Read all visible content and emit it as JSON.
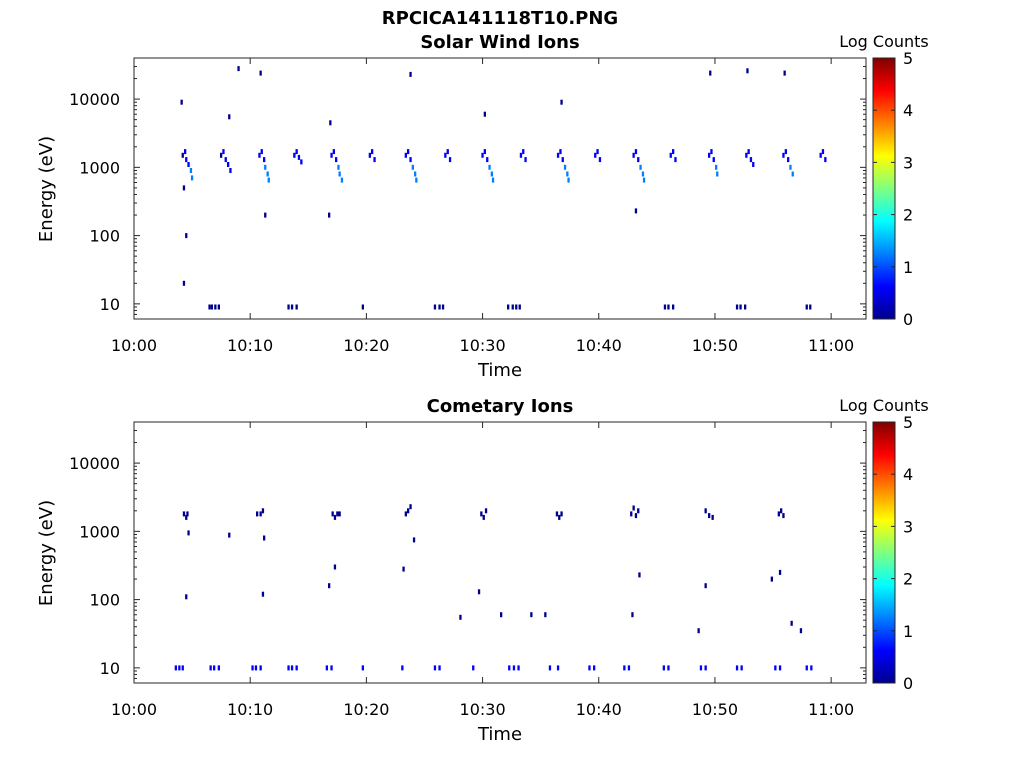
{
  "figure_title": "RPCICA141118T10.PNG",
  "colors": {
    "cmap": [
      "#00008f",
      "#0000ff",
      "#0080ff",
      "#00ffff",
      "#80ff80",
      "#ffff00",
      "#ff8000",
      "#ff0000",
      "#800000"
    ],
    "text": "#000000"
  },
  "chart_data": [
    {
      "type": "heatmap",
      "title": "Solar Wind Ions",
      "xlabel": "Time",
      "ylabel": "Energy (eV)",
      "x_ticks": [
        "10:00",
        "10:10",
        "10:20",
        "10:30",
        "10:40",
        "10:50",
        "11:00"
      ],
      "x_tick_minutes": [
        0,
        10,
        20,
        30,
        40,
        50,
        60
      ],
      "xlim_minutes": [
        0,
        63
      ],
      "y_ticks": [
        "10",
        "100",
        "1000",
        "10000"
      ],
      "y_tick_values": [
        10,
        100,
        1000,
        10000
      ],
      "ylim": [
        6,
        40000
      ],
      "yscale": "log",
      "colorbar": {
        "label": "Log Counts",
        "ticks": [
          "0",
          "1",
          "2",
          "3",
          "4",
          "5"
        ],
        "range": [
          0,
          5
        ]
      },
      "cells": [
        [
          4.2,
          1500,
          0.3
        ],
        [
          4.4,
          1700,
          0.5
        ],
        [
          4.5,
          1300,
          0.7
        ],
        [
          4.7,
          1100,
          0.9
        ],
        [
          4.9,
          900,
          1.1
        ],
        [
          5.0,
          700,
          1.2
        ],
        [
          4.1,
          9000,
          0.3
        ],
        [
          4.3,
          20,
          0.3
        ],
        [
          4.5,
          100,
          0.3
        ],
        [
          4.3,
          500,
          0.3
        ],
        [
          7.5,
          1500,
          0.3
        ],
        [
          7.7,
          1700,
          0.5
        ],
        [
          7.9,
          1300,
          0.6
        ],
        [
          8.1,
          1100,
          0.5
        ],
        [
          8.3,
          900,
          0.4
        ],
        [
          8.2,
          5500,
          0.3
        ],
        [
          9.0,
          28000,
          0.2
        ],
        [
          10.8,
          1500,
          0.4
        ],
        [
          11.0,
          1700,
          0.6
        ],
        [
          11.2,
          1300,
          0.8
        ],
        [
          11.3,
          1000,
          1.0
        ],
        [
          11.5,
          800,
          1.2
        ],
        [
          11.6,
          650,
          1.3
        ],
        [
          10.9,
          24000,
          0.2
        ],
        [
          11.3,
          200,
          0.2
        ],
        [
          13.8,
          1500,
          0.4
        ],
        [
          14.0,
          1700,
          0.5
        ],
        [
          14.2,
          1400,
          0.5
        ],
        [
          14.4,
          1200,
          0.4
        ],
        [
          17.0,
          1500,
          0.4
        ],
        [
          17.2,
          1700,
          0.6
        ],
        [
          17.4,
          1300,
          0.8
        ],
        [
          17.6,
          1000,
          1.0
        ],
        [
          17.7,
          800,
          1.2
        ],
        [
          17.9,
          650,
          1.3
        ],
        [
          16.9,
          4500,
          0.2
        ],
        [
          16.8,
          200,
          0.2
        ],
        [
          20.3,
          1500,
          0.4
        ],
        [
          20.5,
          1700,
          0.5
        ],
        [
          20.7,
          1300,
          0.5
        ],
        [
          23.4,
          1500,
          0.4
        ],
        [
          23.6,
          1700,
          0.6
        ],
        [
          23.8,
          1300,
          0.8
        ],
        [
          24.0,
          1000,
          1.0
        ],
        [
          24.2,
          800,
          1.2
        ],
        [
          24.3,
          650,
          1.3
        ],
        [
          23.8,
          23000,
          0.2
        ],
        [
          26.8,
          1500,
          0.4
        ],
        [
          27.0,
          1700,
          0.5
        ],
        [
          27.2,
          1300,
          0.5
        ],
        [
          30.0,
          1500,
          0.4
        ],
        [
          30.2,
          1700,
          0.6
        ],
        [
          30.4,
          1300,
          0.8
        ],
        [
          30.6,
          1000,
          1.0
        ],
        [
          30.8,
          800,
          1.2
        ],
        [
          30.9,
          650,
          1.3
        ],
        [
          30.2,
          6000,
          0.2
        ],
        [
          33.3,
          1500,
          0.4
        ],
        [
          33.5,
          1700,
          0.5
        ],
        [
          33.7,
          1300,
          0.5
        ],
        [
          36.5,
          1500,
          0.4
        ],
        [
          36.7,
          1700,
          0.6
        ],
        [
          36.9,
          1300,
          0.8
        ],
        [
          37.1,
          1000,
          1.0
        ],
        [
          37.3,
          800,
          1.2
        ],
        [
          37.4,
          650,
          1.3
        ],
        [
          36.8,
          9000,
          0.2
        ],
        [
          39.7,
          1500,
          0.4
        ],
        [
          39.9,
          1700,
          0.5
        ],
        [
          40.1,
          1300,
          0.5
        ],
        [
          43.0,
          1500,
          0.4
        ],
        [
          43.2,
          1700,
          0.6
        ],
        [
          43.4,
          1300,
          0.8
        ],
        [
          43.6,
          1000,
          1.0
        ],
        [
          43.8,
          800,
          1.2
        ],
        [
          43.9,
          650,
          1.3
        ],
        [
          43.2,
          230,
          0.2
        ],
        [
          46.2,
          1500,
          0.4
        ],
        [
          46.4,
          1700,
          0.5
        ],
        [
          46.6,
          1300,
          0.5
        ],
        [
          49.5,
          1500,
          0.4
        ],
        [
          49.7,
          1700,
          0.6
        ],
        [
          49.9,
          1300,
          0.8
        ],
        [
          50.1,
          1000,
          1.0
        ],
        [
          50.2,
          800,
          1.2
        ],
        [
          49.6,
          24000,
          0.2
        ],
        [
          52.7,
          1500,
          0.4
        ],
        [
          52.9,
          1700,
          0.5
        ],
        [
          53.1,
          1300,
          0.5
        ],
        [
          53.3,
          1100,
          0.4
        ],
        [
          52.8,
          26000,
          0.2
        ],
        [
          55.9,
          1500,
          0.4
        ],
        [
          56.1,
          1700,
          0.6
        ],
        [
          56.3,
          1300,
          0.8
        ],
        [
          56.5,
          1000,
          1.0
        ],
        [
          56.7,
          800,
          1.2
        ],
        [
          56.0,
          24000,
          0.2
        ],
        [
          59.1,
          1500,
          0.4
        ],
        [
          59.3,
          1700,
          0.5
        ],
        [
          59.5,
          1300,
          0.5
        ],
        [
          6.5,
          9,
          0.2
        ],
        [
          6.7,
          9,
          0.2
        ],
        [
          7.0,
          9,
          0.2
        ],
        [
          7.3,
          9,
          0.2
        ],
        [
          13.3,
          9,
          0.2
        ],
        [
          13.6,
          9,
          0.2
        ],
        [
          14.0,
          9,
          0.2
        ],
        [
          19.7,
          9,
          0.2
        ],
        [
          25.9,
          9,
          0.2
        ],
        [
          26.3,
          9,
          0.2
        ],
        [
          26.6,
          9,
          0.2
        ],
        [
          32.2,
          9,
          0.2
        ],
        [
          32.6,
          9,
          0.2
        ],
        [
          32.9,
          9,
          0.2
        ],
        [
          33.2,
          9,
          0.2
        ],
        [
          45.7,
          9,
          0.2
        ],
        [
          46.0,
          9,
          0.2
        ],
        [
          46.4,
          9,
          0.2
        ],
        [
          51.9,
          9,
          0.2
        ],
        [
          52.2,
          9,
          0.2
        ],
        [
          52.6,
          9,
          0.2
        ],
        [
          57.9,
          9,
          0.2
        ],
        [
          58.2,
          9,
          0.2
        ]
      ]
    },
    {
      "type": "heatmap",
      "title": "Cometary Ions",
      "xlabel": "Time",
      "ylabel": "Energy (eV)",
      "x_ticks": [
        "10:00",
        "10:10",
        "10:20",
        "10:30",
        "10:40",
        "10:50",
        "11:00"
      ],
      "x_tick_minutes": [
        0,
        10,
        20,
        30,
        40,
        50,
        60
      ],
      "xlim_minutes": [
        0,
        63
      ],
      "y_ticks": [
        "10",
        "100",
        "1000",
        "10000"
      ],
      "y_tick_values": [
        10,
        100,
        1000,
        10000
      ],
      "ylim": [
        6,
        40000
      ],
      "yscale": "log",
      "colorbar": {
        "label": "Log Counts",
        "ticks": [
          "0",
          "1",
          "2",
          "3",
          "4",
          "5"
        ],
        "range": [
          0,
          5
        ]
      },
      "cells": [
        [
          4.3,
          1800,
          0.2
        ],
        [
          4.5,
          1600,
          0.2
        ],
        [
          4.6,
          1800,
          0.2
        ],
        [
          4.7,
          950,
          0.2
        ],
        [
          4.5,
          110,
          0.2
        ],
        [
          10.6,
          1800,
          0.2
        ],
        [
          10.9,
          1800,
          0.2
        ],
        [
          11.1,
          2000,
          0.2
        ],
        [
          11.2,
          800,
          0.2
        ],
        [
          11.1,
          120,
          0.2
        ],
        [
          8.2,
          880,
          0.2
        ],
        [
          17.1,
          1800,
          0.2
        ],
        [
          17.3,
          1600,
          0.2
        ],
        [
          17.5,
          1800,
          0.2
        ],
        [
          17.7,
          1800,
          0.2
        ],
        [
          16.8,
          160,
          0.2
        ],
        [
          17.3,
          300,
          0.2
        ],
        [
          23.4,
          1800,
          0.2
        ],
        [
          23.6,
          2000,
          0.2
        ],
        [
          23.8,
          2300,
          0.2
        ],
        [
          24.1,
          750,
          0.2
        ],
        [
          23.2,
          280,
          0.2
        ],
        [
          29.9,
          1800,
          0.2
        ],
        [
          30.1,
          1600,
          0.2
        ],
        [
          30.3,
          2000,
          0.2
        ],
        [
          29.7,
          130,
          0.2
        ],
        [
          36.4,
          1800,
          0.2
        ],
        [
          36.6,
          1600,
          0.2
        ],
        [
          36.8,
          1800,
          0.2
        ],
        [
          42.8,
          1800,
          0.2
        ],
        [
          43.0,
          2200,
          0.2
        ],
        [
          43.2,
          1700,
          0.2
        ],
        [
          43.4,
          2000,
          0.2
        ],
        [
          43.5,
          230,
          0.2
        ],
        [
          42.9,
          60,
          0.2
        ],
        [
          49.2,
          2000,
          0.2
        ],
        [
          49.5,
          1700,
          0.2
        ],
        [
          49.8,
          1600,
          0.2
        ],
        [
          49.2,
          160,
          0.2
        ],
        [
          55.5,
          1800,
          0.2
        ],
        [
          55.7,
          2000,
          0.2
        ],
        [
          55.9,
          1700,
          0.2
        ],
        [
          55.6,
          250,
          0.2
        ],
        [
          56.6,
          45,
          0.2
        ],
        [
          28.1,
          55,
          0.2
        ],
        [
          31.6,
          60,
          0.2
        ],
        [
          34.2,
          60,
          0.2
        ],
        [
          35.4,
          60,
          0.2
        ],
        [
          48.6,
          35,
          0.2
        ],
        [
          54.9,
          200,
          0.2
        ],
        [
          57.4,
          35,
          0.2
        ],
        [
          3.6,
          10,
          0.4
        ],
        [
          3.9,
          10,
          0.5
        ],
        [
          4.2,
          10,
          0.4
        ],
        [
          6.6,
          10,
          0.5
        ],
        [
          6.9,
          10,
          0.6
        ],
        [
          7.3,
          10,
          0.4
        ],
        [
          10.2,
          10,
          0.4
        ],
        [
          10.5,
          10,
          0.5
        ],
        [
          10.9,
          10,
          0.4
        ],
        [
          13.3,
          10,
          0.5
        ],
        [
          13.6,
          10,
          0.6
        ],
        [
          14.0,
          10,
          0.4
        ],
        [
          16.6,
          10,
          0.5
        ],
        [
          17.0,
          10,
          0.4
        ],
        [
          19.7,
          10,
          0.6
        ],
        [
          23.1,
          10,
          0.5
        ],
        [
          25.9,
          10,
          0.5
        ],
        [
          26.3,
          10,
          0.4
        ],
        [
          29.2,
          10,
          0.6
        ],
        [
          32.3,
          10,
          0.5
        ],
        [
          32.7,
          10,
          0.6
        ],
        [
          33.1,
          10,
          0.4
        ],
        [
          35.8,
          10,
          0.5
        ],
        [
          36.5,
          10,
          0.4
        ],
        [
          39.2,
          10,
          0.5
        ],
        [
          39.6,
          10,
          0.4
        ],
        [
          42.2,
          10,
          0.5
        ],
        [
          42.6,
          10,
          0.4
        ],
        [
          45.6,
          10,
          0.6
        ],
        [
          46.0,
          10,
          0.5
        ],
        [
          48.8,
          10,
          0.4
        ],
        [
          49.2,
          10,
          0.5
        ],
        [
          51.9,
          10,
          0.6
        ],
        [
          52.3,
          10,
          0.5
        ],
        [
          55.2,
          10,
          0.4
        ],
        [
          55.6,
          10,
          0.5
        ],
        [
          57.9,
          10,
          0.6
        ],
        [
          58.3,
          10,
          0.5
        ]
      ]
    }
  ]
}
